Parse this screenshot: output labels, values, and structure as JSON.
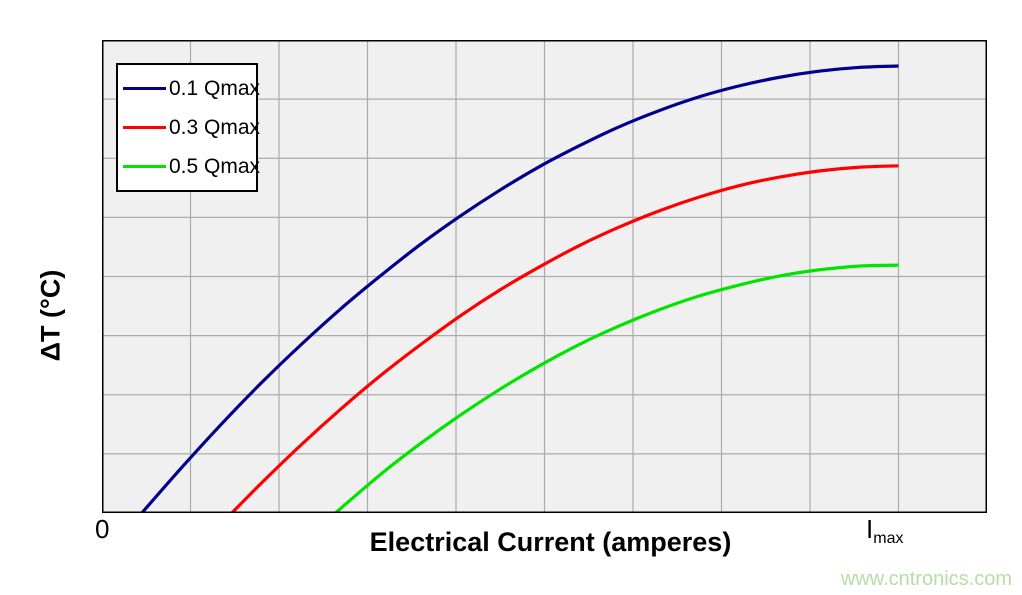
{
  "axes": {
    "x_label": "Electrical Current (amperes)",
    "y_label": "ΔT (°C)",
    "x_tick_zero": "0",
    "x_tick_imax_base": "I",
    "x_tick_imax_sub": "max"
  },
  "watermark": {
    "text": "www.cntronics.com",
    "color": "#b5dda7"
  },
  "legend": {
    "border_color": "#000000",
    "background": "#ffffff"
  },
  "chart_data": {
    "type": "line",
    "title": "",
    "xlabel": "Electrical Current (amperes)",
    "ylabel": "ΔT (°C)",
    "x_tick_labels": [
      "0",
      "Imax"
    ],
    "x_units": "fraction of Imax (x axis spans 0 to ~1.11 Imax; Imax gridline is where curves end)",
    "y_units": "fraction of plot height (y axis has no numeric scale shown; ΔT increases upward)",
    "x_range": [
      0,
      1.111
    ],
    "y_range": [
      0,
      1
    ],
    "grid": {
      "cols": 10,
      "rows": 8,
      "background": "#f0f0f0",
      "line_color": "#ababab",
      "border_color": "#000000"
    },
    "legend_position": "top-left inside plot",
    "series": [
      {
        "name": "0.1 Qmax",
        "color": "#00008C",
        "x_intercept": 0.05,
        "plateau": 0.945,
        "points": [
          [
            0.05,
            0.0
          ],
          [
            0.1,
            0.096
          ],
          [
            0.15,
            0.188
          ],
          [
            0.2,
            0.275
          ],
          [
            0.25,
            0.356
          ],
          [
            0.3,
            0.432
          ],
          [
            0.35,
            0.502
          ],
          [
            0.4,
            0.568
          ],
          [
            0.45,
            0.628
          ],
          [
            0.5,
            0.683
          ],
          [
            0.55,
            0.733
          ],
          [
            0.6,
            0.777
          ],
          [
            0.65,
            0.817
          ],
          [
            0.7,
            0.851
          ],
          [
            0.75,
            0.88
          ],
          [
            0.8,
            0.903
          ],
          [
            0.85,
            0.921
          ],
          [
            0.9,
            0.934
          ],
          [
            0.95,
            0.942
          ],
          [
            1.0,
            0.945
          ]
        ]
      },
      {
        "name": "0.3 Qmax",
        "color": "#FF0000",
        "x_intercept": 0.163,
        "plateau": 0.734,
        "points": [
          [
            0.163,
            0.0
          ],
          [
            0.2,
            0.063
          ],
          [
            0.25,
            0.144
          ],
          [
            0.3,
            0.22
          ],
          [
            0.35,
            0.291
          ],
          [
            0.4,
            0.356
          ],
          [
            0.45,
            0.417
          ],
          [
            0.5,
            0.472
          ],
          [
            0.55,
            0.521
          ],
          [
            0.6,
            0.566
          ],
          [
            0.65,
            0.605
          ],
          [
            0.7,
            0.639
          ],
          [
            0.75,
            0.668
          ],
          [
            0.8,
            0.692
          ],
          [
            0.85,
            0.71
          ],
          [
            0.9,
            0.723
          ],
          [
            0.95,
            0.731
          ],
          [
            1.0,
            0.734
          ]
        ]
      },
      {
        "name": "0.5 Qmax",
        "color": "#00E400",
        "x_intercept": 0.293,
        "plateau": 0.524,
        "points": [
          [
            0.293,
            0.0
          ],
          [
            0.35,
            0.082
          ],
          [
            0.4,
            0.147
          ],
          [
            0.45,
            0.207
          ],
          [
            0.5,
            0.262
          ],
          [
            0.55,
            0.312
          ],
          [
            0.6,
            0.357
          ],
          [
            0.65,
            0.396
          ],
          [
            0.7,
            0.43
          ],
          [
            0.75,
            0.459
          ],
          [
            0.8,
            0.482
          ],
          [
            0.85,
            0.501
          ],
          [
            0.9,
            0.514
          ],
          [
            0.95,
            0.522
          ],
          [
            1.0,
            0.524
          ]
        ]
      }
    ]
  }
}
